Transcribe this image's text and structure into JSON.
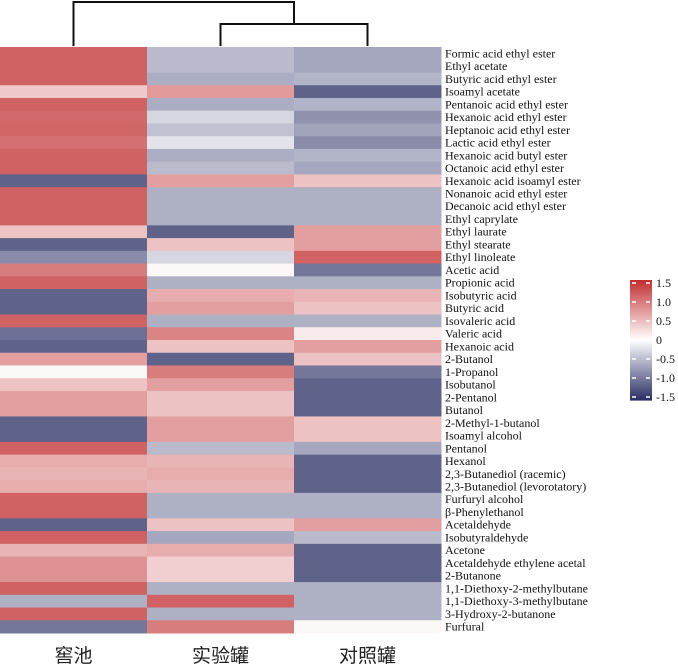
{
  "chart_data": {
    "type": "heatmap",
    "title": "",
    "columns": [
      "窖池",
      "实验罐",
      "对照罐"
    ],
    "rows": [
      "Formic acid ethyl ester",
      "Ethyl acetate",
      "Butyric acid ethyl ester",
      "Isoamyl acetate",
      "Pentanoic acid ethyl ester",
      "Hexanoic acid ethyl ester",
      "Heptanoic acid ethyl ester",
      "Lactic acid ethyl ester",
      "Hexanoic acid butyl ester",
      "Octanoic acid ethyl ester",
      "Hexanoic acid isoamyl ester",
      "Nonanoic acid ethyl ester",
      "Decanoic acid ethyl ester",
      "Ethyl caprylate",
      "Ethyl laurate",
      "Ethyl stearate",
      "Ethyl linoleate",
      "Acetic acid",
      "Propionic acid",
      "Isobutyric acid",
      "Butyric acid",
      "Isovaleric acid",
      "Valeric acid",
      "Hexanoic acid",
      "2-Butanol",
      "1-Propanol",
      "Isobutanol",
      "2-Pentanol",
      "Butanol",
      "2-Methyl-1-butanol",
      "Isoamyl alcohol",
      "Pentanol",
      "Hexanol",
      "2,3-Butanediol (racemic)",
      "2,3-Butanediol (levorotatory)",
      "Furfuryl alcohol",
      "β-Phenylethanol",
      "Acetaldehyde",
      "Isobutyraldehyde",
      "Acetone",
      "Acetaldehyde ethylene acetal",
      "2-Butanone",
      "1,1-Diethoxy-2-methylbutane",
      "1,1-Diethoxy-3-methylbutane",
      "3-Hydroxy-2-butanone",
      "Furfural"
    ],
    "values": [
      [
        1.15,
        -0.5,
        -0.65
      ],
      [
        1.15,
        -0.5,
        -0.65
      ],
      [
        1.15,
        -0.6,
        -0.55
      ],
      [
        0.4,
        0.75,
        -1.15
      ],
      [
        1.15,
        -0.6,
        -0.55
      ],
      [
        1.1,
        -0.3,
        -0.8
      ],
      [
        1.12,
        -0.45,
        -0.67
      ],
      [
        1.05,
        -0.2,
        -0.85
      ],
      [
        1.15,
        -0.6,
        -0.55
      ],
      [
        1.15,
        -0.5,
        -0.65
      ],
      [
        -1.15,
        0.7,
        0.45
      ],
      [
        1.15,
        -0.58,
        -0.58
      ],
      [
        1.15,
        -0.58,
        -0.58
      ],
      [
        1.15,
        -0.58,
        -0.58
      ],
      [
        0.45,
        -1.15,
        0.7
      ],
      [
        -1.15,
        0.45,
        0.7
      ],
      [
        -0.85,
        -0.3,
        1.15
      ],
      [
        0.95,
        0.05,
        -1.0
      ],
      [
        1.15,
        -0.58,
        -0.58
      ],
      [
        -1.15,
        0.6,
        0.55
      ],
      [
        -1.15,
        0.7,
        0.45
      ],
      [
        1.15,
        -0.58,
        -0.58
      ],
      [
        -1.05,
        0.9,
        0.15
      ],
      [
        -1.15,
        0.45,
        0.7
      ],
      [
        0.7,
        -1.15,
        0.45
      ],
      [
        0.05,
        0.95,
        -1.0
      ],
      [
        0.45,
        0.7,
        -1.15
      ],
      [
        0.7,
        0.45,
        -1.15
      ],
      [
        0.7,
        0.45,
        -1.15
      ],
      [
        -1.15,
        0.7,
        0.45
      ],
      [
        -1.15,
        0.7,
        0.45
      ],
      [
        1.15,
        -0.5,
        -0.65
      ],
      [
        0.6,
        0.55,
        -1.15
      ],
      [
        0.55,
        0.6,
        -1.15
      ],
      [
        0.6,
        0.55,
        -1.15
      ],
      [
        1.15,
        -0.58,
        -0.58
      ],
      [
        1.15,
        -0.58,
        -0.58
      ],
      [
        -1.15,
        0.45,
        0.7
      ],
      [
        1.15,
        -0.65,
        -0.5
      ],
      [
        0.55,
        0.6,
        -1.15
      ],
      [
        0.8,
        0.35,
        -1.15
      ],
      [
        0.8,
        0.35,
        -1.15
      ],
      [
        1.15,
        -0.58,
        -0.58
      ],
      [
        -0.58,
        1.15,
        -0.58
      ],
      [
        1.15,
        -0.58,
        -0.58
      ],
      [
        -1.0,
        0.95,
        0.05
      ]
    ],
    "dendrogram": {
      "clusters": [
        [
          "实验罐",
          "对照罐"
        ],
        [
          "窖池",
          [
            "实验罐",
            "对照罐"
          ]
        ]
      ]
    },
    "colorbar": {
      "ticks": [
        "1.5",
        "1.0",
        "0.5",
        "0",
        "-0.5",
        "-1.0",
        "-1.5"
      ],
      "range": [
        -1.5,
        1.5
      ],
      "low_color": "#2E3366",
      "mid_color": "#FFFFFF",
      "high_color": "#C23234"
    },
    "legend_position": "right"
  }
}
